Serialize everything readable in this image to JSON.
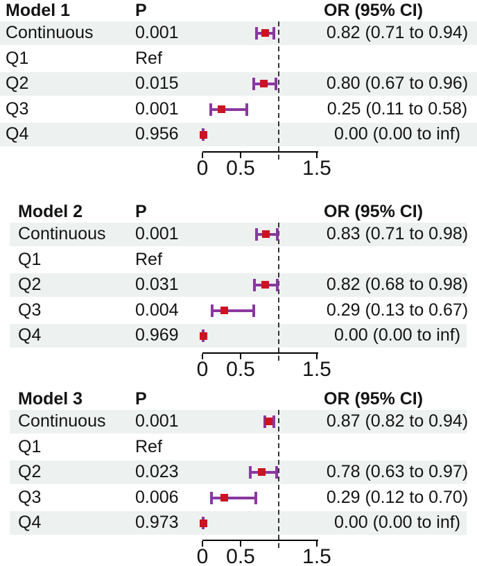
{
  "columns": {
    "p_header": "P",
    "or_header": "OR (95% CI)"
  },
  "axis": {
    "xlim": [
      0,
      1.5
    ],
    "ticks": [
      0,
      0.5,
      1.5
    ],
    "tick_labels": [
      "0",
      "0.5",
      "1.5"
    ],
    "reference_line": 1.0
  },
  "colors": {
    "band": "#edf1ef",
    "marker": "#cc1322",
    "whisker": "#8a38a0",
    "reference_line": "#333333",
    "axis": "#000000",
    "text": "#141414"
  },
  "chart_data": [
    {
      "type": "forest",
      "title": "Model 1",
      "xlim": [
        0,
        1.5
      ],
      "x_ticks": [
        0,
        0.5,
        1.5
      ],
      "x_tick_labels": [
        "0",
        "0.5",
        "1.5"
      ],
      "ref_line": 1.0,
      "rows": [
        {
          "label": "Continuous",
          "p": "0.001",
          "or": 0.82,
          "ci_low": 0.71,
          "ci_high": 0.94,
          "or_text": "0.82 (0.71 to 0.94)"
        },
        {
          "label": "Q1",
          "p": "Ref",
          "or": null,
          "ci_low": null,
          "ci_high": null,
          "or_text": ""
        },
        {
          "label": "Q2",
          "p": "0.015",
          "or": 0.8,
          "ci_low": 0.67,
          "ci_high": 0.96,
          "or_text": "0.80 (0.67 to 0.96)"
        },
        {
          "label": "Q3",
          "p": "0.001",
          "or": 0.25,
          "ci_low": 0.11,
          "ci_high": 0.58,
          "or_text": "0.25 (0.11 to 0.58)"
        },
        {
          "label": "Q4",
          "p": "0.956",
          "or": 0.0,
          "ci_low": 0.0,
          "ci_high": "inf",
          "or_text": "0.00 (0.00 to inf)"
        }
      ]
    },
    {
      "type": "forest",
      "title": "Model 2",
      "xlim": [
        0,
        1.5
      ],
      "x_ticks": [
        0,
        0.5,
        1.5
      ],
      "x_tick_labels": [
        "0",
        "0.5",
        "1.5"
      ],
      "ref_line": 1.0,
      "rows": [
        {
          "label": "Continuous",
          "p": "0.001",
          "or": 0.83,
          "ci_low": 0.71,
          "ci_high": 0.98,
          "or_text": "0.83 (0.71 to 0.98)"
        },
        {
          "label": "Q1",
          "p": "Ref",
          "or": null,
          "ci_low": null,
          "ci_high": null,
          "or_text": ""
        },
        {
          "label": "Q2",
          "p": "0.031",
          "or": 0.82,
          "ci_low": 0.68,
          "ci_high": 0.98,
          "or_text": "0.82 (0.68 to 0.98)"
        },
        {
          "label": "Q3",
          "p": "0.004",
          "or": 0.29,
          "ci_low": 0.13,
          "ci_high": 0.67,
          "or_text": "0.29 (0.13 to 0.67)"
        },
        {
          "label": "Q4",
          "p": "0.969",
          "or": 0.0,
          "ci_low": 0.0,
          "ci_high": "inf",
          "or_text": "0.00 (0.00 to inf)"
        }
      ]
    },
    {
      "type": "forest",
      "title": "Model 3",
      "xlim": [
        0,
        1.5
      ],
      "x_ticks": [
        0,
        0.5,
        1.5
      ],
      "x_tick_labels": [
        "0",
        "0.5",
        "1.5"
      ],
      "ref_line": 1.0,
      "rows": [
        {
          "label": "Continuous",
          "p": "0.001",
          "or": 0.87,
          "ci_low": 0.82,
          "ci_high": 0.94,
          "or_text": "0.87 (0.82 to 0.94)"
        },
        {
          "label": "Q1",
          "p": "Ref",
          "or": null,
          "ci_low": null,
          "ci_high": null,
          "or_text": ""
        },
        {
          "label": "Q2",
          "p": "0.023",
          "or": 0.78,
          "ci_low": 0.63,
          "ci_high": 0.97,
          "or_text": "0.78 (0.63 to 0.97)"
        },
        {
          "label": "Q3",
          "p": "0.006",
          "or": 0.29,
          "ci_low": 0.12,
          "ci_high": 0.7,
          "or_text": "0.29 (0.12 to 0.70)"
        },
        {
          "label": "Q4",
          "p": "0.973",
          "or": 0.0,
          "ci_low": 0.0,
          "ci_high": "inf",
          "or_text": "0.00 (0.00 to inf)"
        }
      ]
    }
  ]
}
